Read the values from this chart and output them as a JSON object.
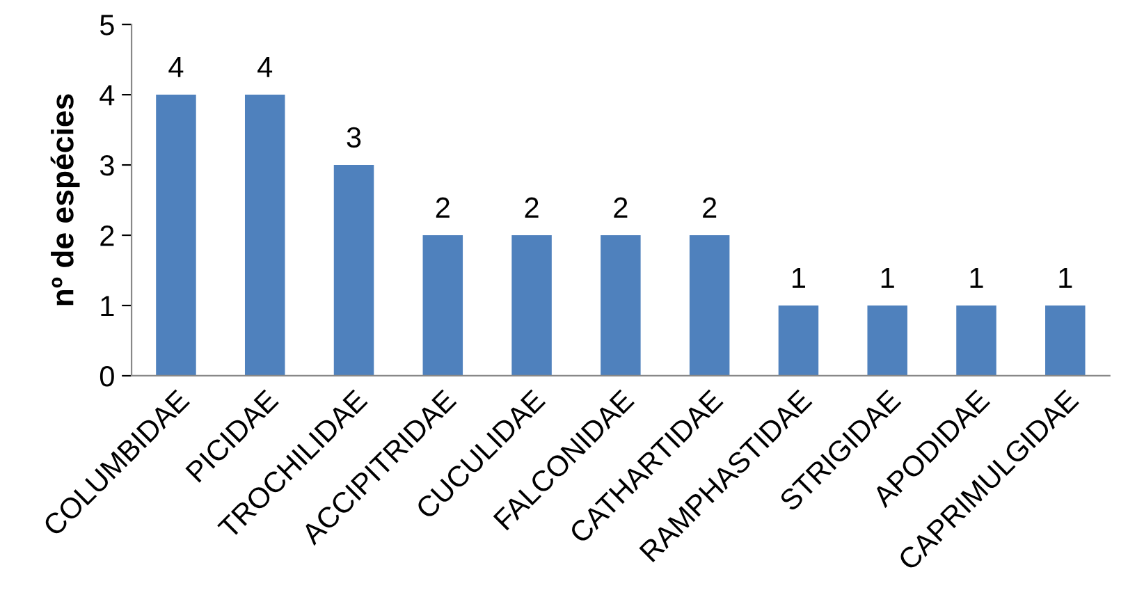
{
  "chart_data": {
    "type": "bar",
    "ylabel": "nº de espécies",
    "categories": [
      "COLUMBIDAE",
      "PICIDAE",
      "TROCHILIDAE",
      "ACCIPITRIDAE",
      "CUCULIDAE",
      "FALCONIDAE",
      "CATHARTIDAE",
      "RAMPHASTIDAE",
      "STRIGIDAE",
      "APODIDAE",
      "CAPRIMULGIDAE"
    ],
    "values": [
      4,
      4,
      3,
      2,
      2,
      2,
      2,
      1,
      1,
      1,
      1
    ],
    "color": "#4f81bd",
    "ylim": [
      0,
      5
    ],
    "yticks": [
      0,
      1,
      2,
      3,
      4,
      5
    ],
    "grid": false,
    "data_labels": true
  }
}
